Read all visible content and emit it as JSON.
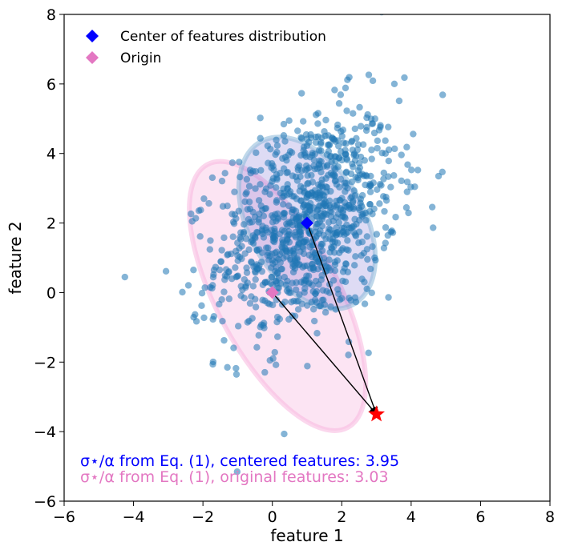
{
  "chart_data": {
    "type": "scatter",
    "title": "",
    "xlabel": "feature 1",
    "ylabel": "feature 2",
    "xlim": [
      -6,
      8
    ],
    "ylim": [
      -6,
      8
    ],
    "xticks": [
      -6,
      -4,
      -2,
      0,
      2,
      4,
      6,
      8
    ],
    "yticks": [
      -6,
      -4,
      -2,
      0,
      2,
      4,
      6,
      8
    ],
    "xtick_labels": [
      "−6",
      "−4",
      "−2",
      "0",
      "2",
      "4",
      "6",
      "8"
    ],
    "ytick_labels": [
      "−6",
      "−4",
      "−2",
      "0",
      "2",
      "4",
      "6",
      "8"
    ],
    "grid": false,
    "legend_position": "top-left",
    "series": [
      {
        "name": "features",
        "marker": "circle",
        "color": "#1f77b4",
        "count": 1000,
        "mean": [
          1.0,
          2.0
        ],
        "std": [
          1.3,
          1.6
        ],
        "correlation": 0.35
      }
    ],
    "markers": [
      {
        "name": "Center of features distribution",
        "marker": "diamond",
        "color": "#0000ff",
        "x": 1.0,
        "y": 2.0
      },
      {
        "name": "Origin",
        "marker": "diamond",
        "color": "#e377c2",
        "x": 0.0,
        "y": 0.0
      },
      {
        "name": "target",
        "marker": "star",
        "color": "#ff0000",
        "x": 3.0,
        "y": -3.5
      }
    ],
    "ellipses": [
      {
        "name": "centered features ellipse",
        "center": [
          1.0,
          2.0
        ],
        "rx": 3.3,
        "ry": 5.4,
        "angle_deg": -30,
        "fill": "#6a5acd",
        "fill_opacity": 0.22,
        "stroke": "#8ab8d8"
      },
      {
        "name": "original features ellipse",
        "center": [
          0.15,
          -0.1
        ],
        "rx": 3.5,
        "ry": 8.6,
        "angle_deg": -28,
        "fill": "#f4a6d7",
        "fill_opacity": 0.3,
        "stroke": "#f7b6df"
      }
    ],
    "arrows": [
      {
        "from": [
          1.0,
          2.0
        ],
        "to": [
          3.0,
          -3.5
        ],
        "color": "#000000"
      },
      {
        "from": [
          0.0,
          0.0
        ],
        "to": [
          3.0,
          -3.5
        ],
        "color": "#000000"
      }
    ],
    "legend": [
      {
        "label": "Center of features distribution",
        "color": "#0000ff",
        "marker": "diamond"
      },
      {
        "label": "Origin",
        "color": "#e377c2",
        "marker": "diamond"
      }
    ],
    "annotations": [
      {
        "text": "σ⋆/α from Eq. (1), centered features: 3.95",
        "color": "#0000ff"
      },
      {
        "text": "σ⋆/α from Eq. (1), original features: 3.03",
        "color": "#e377c2"
      }
    ]
  }
}
